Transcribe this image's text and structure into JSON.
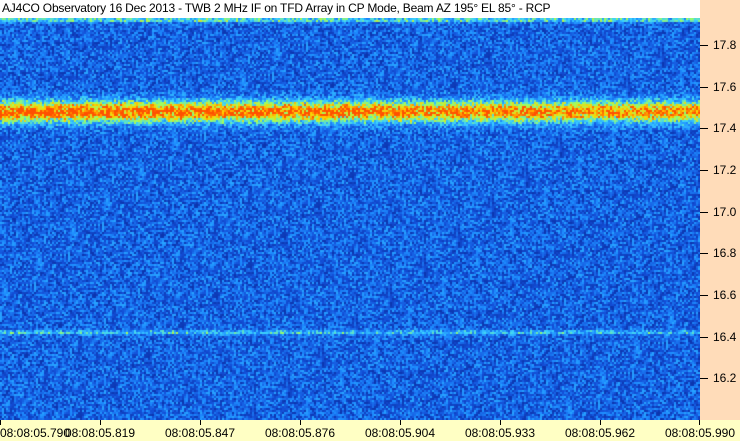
{
  "title": "AJ4CO Observatory 16 Dec 2013 - TWB 2 MHz IF on TFD Array in CP Mode, Beam AZ 195° EL 85° - RCP",
  "chart_data": {
    "type": "heatmap",
    "title": "AJ4CO Observatory 16 Dec 2013 - TWB 2 MHz IF on TFD Array in CP Mode, Beam AZ 195° EL 85° - RCP",
    "x_ticks": [
      "08:08:05.790",
      "08:08:05.819",
      "08:08:05.847",
      "08:08:05.876",
      "08:08:05.904",
      "08:08:05.933",
      "08:08:05.962",
      "08:08:05.990"
    ],
    "y_ticks": [
      17.8,
      17.6,
      17.4,
      17.2,
      17.0,
      16.8,
      16.6,
      16.4,
      16.2
    ],
    "ylim": [
      16.0,
      17.93
    ],
    "y_axis_position": "right",
    "colormap": [
      "#000a50",
      "#0a2ca0",
      "#1450d8",
      "#1e8cff",
      "#3cd2ff",
      "#a0ff60",
      "#ffd200",
      "#ff5000"
    ],
    "signals": [
      {
        "freq": 17.48,
        "width": 0.05,
        "intensity": 0.75
      },
      {
        "freq": 17.92,
        "width": 0.01,
        "intensity": 0.35
      },
      {
        "freq": 16.42,
        "width": 0.01,
        "intensity": 0.25
      }
    ],
    "background_level": 0.33
  },
  "colors": {
    "y_axis_bg": "#ffdcb9",
    "x_axis_bg": "#ffffc4"
  }
}
